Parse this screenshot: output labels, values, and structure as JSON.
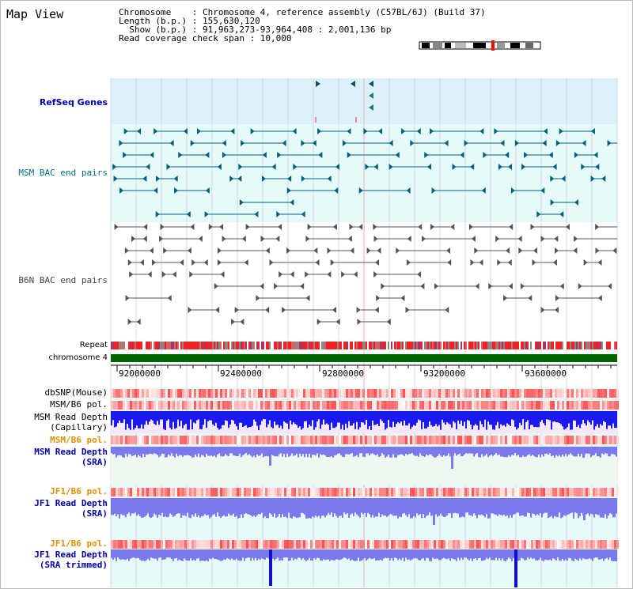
{
  "panel_title": "Map View",
  "info": {
    "chromosome_line": "Chromosome    : Chromosome 4, reference assembly (C57BL/6J) (Build 37)",
    "length_line": "Length (b.p.) : 155,630,120",
    "show_line": "  Show (b.p.) : 91,963,273-93,964,408 : 2,001,136 bp",
    "coverage_line": "Read coverage check span : 10,000"
  },
  "tracks": {
    "refseq": "RefSeq Genes",
    "msm_bac": "MSM BAC end pairs",
    "b6n_bac": "B6N BAC end pairs",
    "repeat": "Repeat",
    "chromosome": "chromosome 4",
    "dbsnp": "dbSNP(Mouse)",
    "msm_b6_pol_1": "MSM/B6 pol.",
    "msm_depth_cap_1": "MSM Read Depth",
    "msm_depth_cap_2": "(Capillary)",
    "msm_b6_pol_2": "MSM/B6 pol.",
    "msm_depth_sra_1": "MSM Read Depth",
    "msm_depth_sra_2": "(SRA)",
    "jf1_b6_pol_1": "JF1/B6 pol.",
    "jf1_depth_sra_1": "JF1 Read Depth",
    "jf1_depth_sra_2": "(SRA)",
    "jf1_b6_pol_2": "JF1/B6 pol.",
    "jf1_depth_trim_1": "JF1 Read Depth",
    "jf1_depth_trim_2": "(SRA trimmed)"
  },
  "axis_ticks": [
    "92000000",
    "92400000",
    "92800000",
    "93200000",
    "93600000"
  ],
  "colors": {
    "refseq_bg": "#dcf0fa",
    "bac_bg": "#e6fafa",
    "track_bg": "#e6fafa",
    "gene": "#006080",
    "bac_gray": "#555555",
    "chromosome_bar": "#006400",
    "depth_capillary": "#1a1aee",
    "depth_sra": "#7a7aee",
    "pol_red": "#ff3030"
  }
}
